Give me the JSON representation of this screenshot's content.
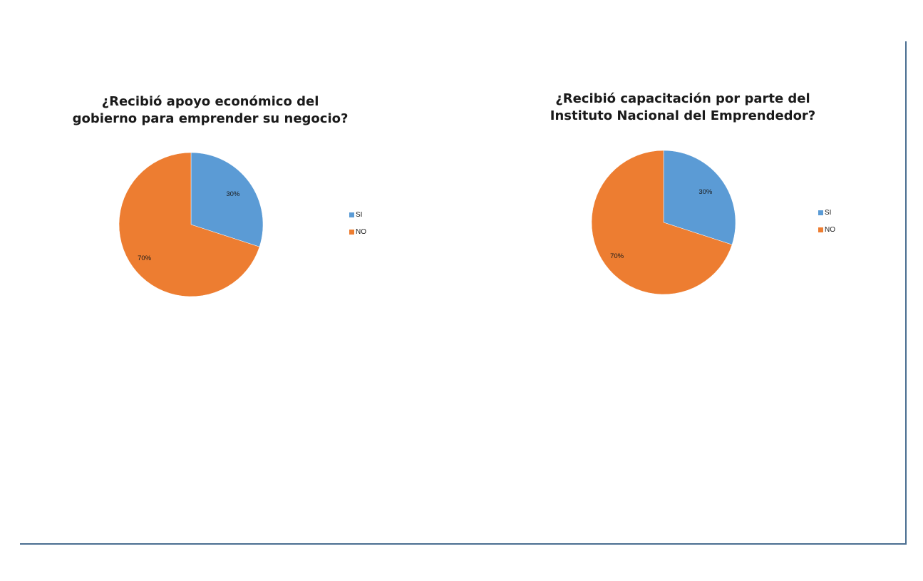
{
  "chart_data": [
    {
      "type": "pie",
      "title_lines": [
        "¿Recibió apoyo económico del",
        "gobierno para emprender su negocio?"
      ],
      "slices": [
        {
          "label": "SI",
          "value": 30,
          "data_label": "30%",
          "color": "#5b9bd5"
        },
        {
          "label": "NO",
          "value": 70,
          "data_label": "70%",
          "color": "#ed7d31"
        }
      ],
      "legend": {
        "position": "right",
        "items": [
          "SI",
          "NO"
        ]
      }
    },
    {
      "type": "pie",
      "title_lines": [
        "¿Recibió capacitación por parte del",
        "Instituto Nacional del Emprendedor?"
      ],
      "slices": [
        {
          "label": "SI",
          "value": 30,
          "data_label": "30%",
          "color": "#5b9bd5"
        },
        {
          "label": "NO",
          "value": 70,
          "data_label": "70%",
          "color": "#ed7d31"
        }
      ],
      "legend": {
        "position": "right",
        "items": [
          "SI",
          "NO"
        ]
      }
    }
  ],
  "frame_color": "#4a6e91"
}
